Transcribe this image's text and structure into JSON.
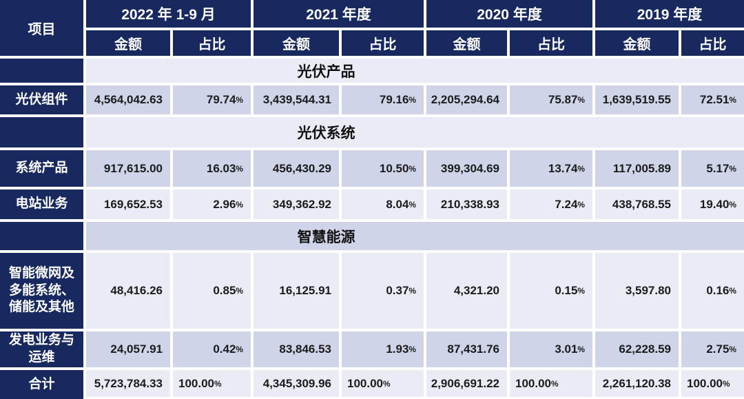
{
  "table": {
    "project_header": "项目",
    "periods": [
      {
        "label": "2022 年 1-9 月"
      },
      {
        "label": "2021 年度"
      },
      {
        "label": "2020 年度"
      },
      {
        "label": "2019 年度"
      }
    ],
    "sub_headers": {
      "amount": "金额",
      "ratio": "占比"
    },
    "rows": [
      {
        "type": "section",
        "label": "光伏产品"
      },
      {
        "type": "data",
        "label": "光伏组件",
        "values": [
          "4,564,042.63",
          "79.74%",
          "3,439,544.31",
          "79.16%",
          "2,205,294.64",
          "75.87%",
          "1,639,519.55",
          "72.51%"
        ]
      },
      {
        "type": "section",
        "label": "光伏系统"
      },
      {
        "type": "data",
        "label": "系统产品",
        "values": [
          "917,615.00",
          "16.03%",
          "456,430.29",
          "10.50%",
          "399,304.69",
          "13.74%",
          "117,005.89",
          "5.17%"
        ]
      },
      {
        "type": "data",
        "label": "电站业务",
        "values": [
          "169,652.53",
          "2.96%",
          "349,362.92",
          "8.04%",
          "210,338.93",
          "7.24%",
          "438,768.55",
          "19.40%"
        ]
      },
      {
        "type": "section",
        "label": "智慧能源"
      },
      {
        "type": "data",
        "label": "智能微网及多能系统、储能及其他",
        "values": [
          "48,416.26",
          "0.85%",
          "16,125.91",
          "0.37%",
          "4,321.20",
          "0.15%",
          "3,597.80",
          "0.16%"
        ]
      },
      {
        "type": "data",
        "label": "发电业务与运维",
        "values": [
          "24,057.91",
          "0.42%",
          "83,846.53",
          "1.93%",
          "87,431.76",
          "3.01%",
          "62,228.59",
          "2.75%"
        ]
      },
      {
        "type": "total",
        "label": "合计",
        "values": [
          "5,723,784.33",
          "100.00%",
          "4,345,309.96",
          "100.00%",
          "2,906,691.22",
          "100.00%",
          "2,261,120.38",
          "100.00%"
        ]
      }
    ],
    "colors": {
      "navy": "#17295e",
      "row_dark": "#cfd4e8",
      "row_light": "#e9ecf5",
      "gutter": "#ffffff",
      "text": "#1b1b1b",
      "header_text": "#ffffff"
    }
  }
}
